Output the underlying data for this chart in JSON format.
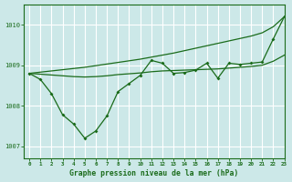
{
  "title": "Graphe pression niveau de la mer (hPa)",
  "xlim": [
    -0.5,
    23
  ],
  "ylim": [
    1006.7,
    1010.5
  ],
  "yticks": [
    1007,
    1008,
    1009,
    1010
  ],
  "xticks": [
    0,
    1,
    2,
    3,
    4,
    5,
    6,
    7,
    8,
    9,
    10,
    11,
    12,
    13,
    14,
    15,
    16,
    17,
    18,
    19,
    20,
    21,
    22,
    23
  ],
  "bg_color": "#cce8e8",
  "grid_color": "#ffffff",
  "line_color": "#1a6b1a",
  "line_jagged": [
    1008.8,
    1008.65,
    1008.3,
    1007.78,
    1007.55,
    1007.2,
    1007.38,
    1007.75,
    1008.35,
    1008.55,
    1008.75,
    1009.12,
    1009.05,
    1008.8,
    1008.82,
    1008.88,
    1009.05,
    1008.68,
    1009.05,
    1009.02,
    1009.05,
    1009.08,
    1009.65,
    1010.2
  ],
  "line_smooth": [
    1008.8,
    1008.78,
    1008.76,
    1008.74,
    1008.72,
    1008.71,
    1008.72,
    1008.74,
    1008.77,
    1008.79,
    1008.81,
    1008.84,
    1008.86,
    1008.87,
    1008.88,
    1008.89,
    1008.9,
    1008.91,
    1008.93,
    1008.95,
    1008.97,
    1009.0,
    1009.1,
    1009.25
  ],
  "line_trend": [
    1008.8,
    1008.83,
    1008.86,
    1008.89,
    1008.92,
    1008.95,
    1008.99,
    1009.03,
    1009.07,
    1009.11,
    1009.15,
    1009.2,
    1009.25,
    1009.3,
    1009.36,
    1009.42,
    1009.48,
    1009.54,
    1009.6,
    1009.66,
    1009.72,
    1009.8,
    1009.95,
    1010.2
  ]
}
